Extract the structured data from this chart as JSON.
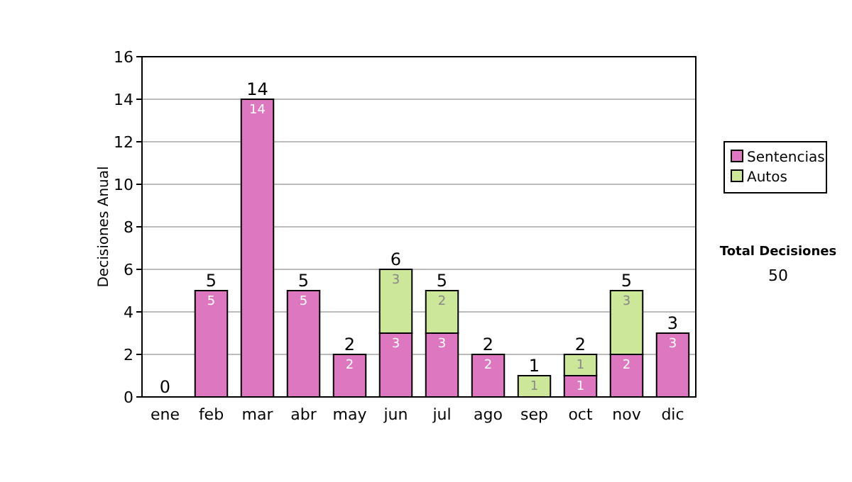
{
  "chart_data": {
    "type": "bar",
    "stacked": true,
    "ylabel": "Decisiones Anual",
    "categories": [
      "ene",
      "feb",
      "mar",
      "abr",
      "may",
      "jun",
      "jul",
      "ago",
      "sep",
      "oct",
      "nov",
      "dic"
    ],
    "series": [
      {
        "name": "Sentencias",
        "color": "#dd77c0",
        "values": [
          0,
          5,
          14,
          5,
          2,
          3,
          3,
          2,
          0,
          1,
          2,
          3
        ],
        "value_labels": [
          null,
          "5",
          "14",
          "5",
          "2",
          "3",
          "3",
          "2",
          null,
          "1",
          "2",
          "3"
        ]
      },
      {
        "name": "Autos",
        "color": "#cce79a",
        "values": [
          0,
          0,
          0,
          0,
          0,
          3,
          2,
          0,
          1,
          1,
          3,
          0
        ],
        "value_labels": [
          null,
          null,
          null,
          null,
          null,
          "3",
          "2",
          null,
          "1",
          "1",
          "3",
          null
        ]
      }
    ],
    "totals": [
      "0",
      "5",
      "14",
      "5",
      "2",
      "6",
      "5",
      "2",
      "1",
      "2",
      "5",
      "3"
    ],
    "ylim": [
      0,
      16
    ],
    "yticks": [
      0,
      2,
      4,
      6,
      8,
      10,
      12,
      14,
      16
    ],
    "grid": "y",
    "legend": "right",
    "annotations": [
      "Total Decisiones",
      "50"
    ]
  }
}
